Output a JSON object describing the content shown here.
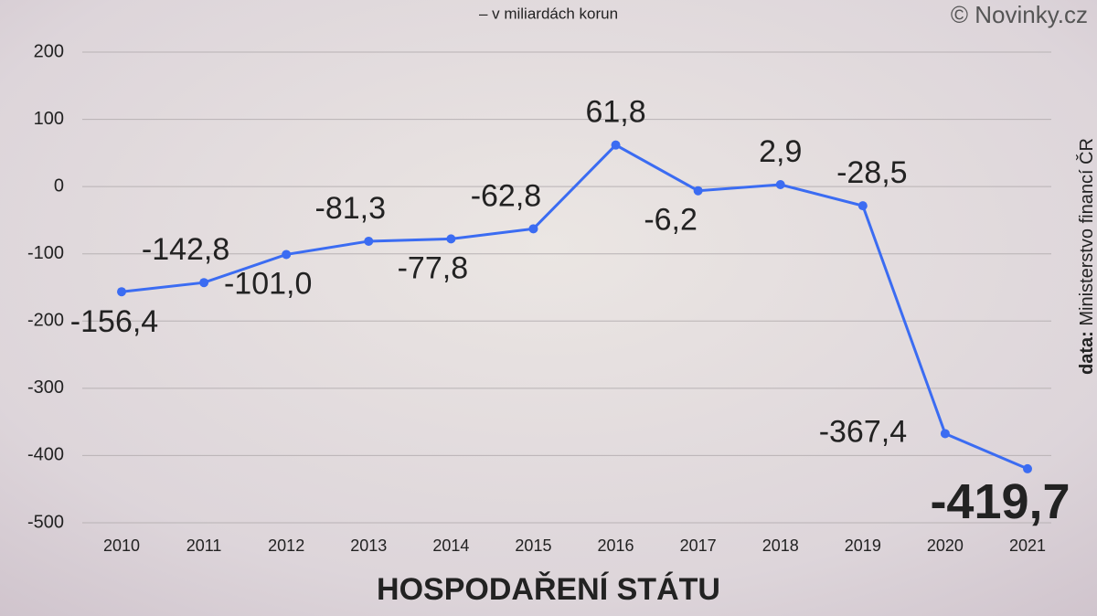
{
  "chart_data": {
    "type": "line",
    "title": "HOSPODAŘENÍ STÁTU",
    "subtitle": "– v miliardách korun",
    "credit": "© Novinky.cz",
    "source_label": "data:",
    "source": "Ministerstvo financí ČR",
    "categories": [
      "2010",
      "2011",
      "2012",
      "2013",
      "2014",
      "2015",
      "2016",
      "2017",
      "2018",
      "2019",
      "2020",
      "2021"
    ],
    "series": [
      {
        "color": "#3b6cf2",
        "values": [
          -156.4,
          -142.8,
          -101.0,
          -81.3,
          -77.8,
          -62.8,
          61.8,
          -6.2,
          2.9,
          -28.5,
          -367.4,
          -419.7
        ],
        "value_labels": [
          "-156,4",
          "-142,8",
          "-101,0",
          "-81,3",
          "-77,8",
          "-62,8",
          "61,8",
          "-6,2",
          "2,9",
          "-28,5",
          "-367,4",
          "-419,7"
        ]
      }
    ],
    "ylim": [
      -500,
      200
    ],
    "yticks": [
      -500,
      -400,
      -300,
      -200,
      -100,
      0,
      100,
      200
    ],
    "grid": true
  }
}
